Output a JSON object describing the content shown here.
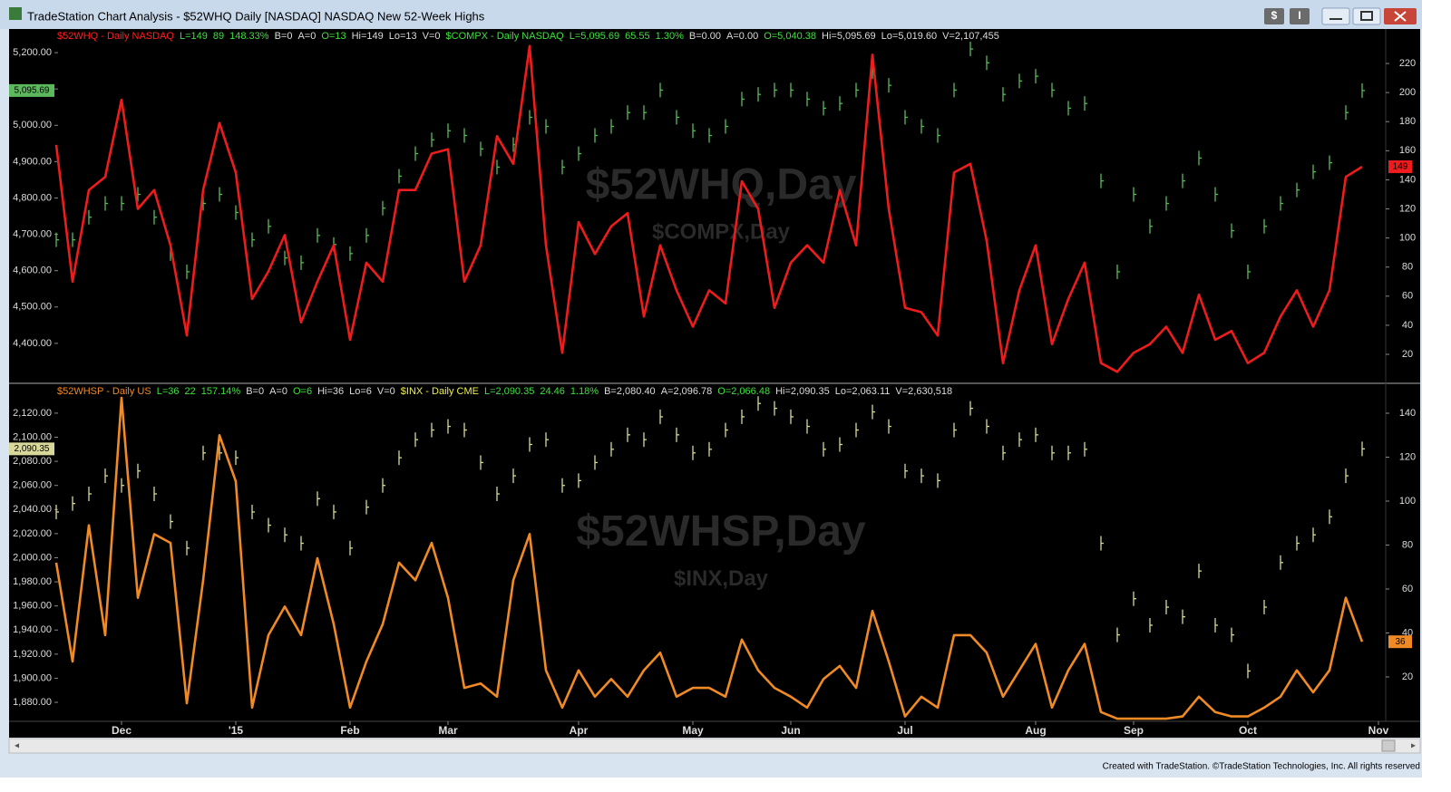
{
  "window": {
    "title": "TradeStation Chart Analysis - $52WHQ Daily [NASDAQ] NASDAQ New 52-Week Highs",
    "buttons": [
      "$",
      "I"
    ],
    "footer": "Created with TradeStation. ©TradeStation Technologies, Inc. All rights reserved"
  },
  "chart_data": [
    {
      "type": "line",
      "header": [
        {
          "text": "$52WHQ - Daily  NASDAQ",
          "color": "#ff2020"
        },
        {
          "text": "L=149",
          "color": "#3ee03e"
        },
        {
          "text": "89",
          "color": "#3ee03e"
        },
        {
          "text": "148.33%",
          "color": "#3ee03e"
        },
        {
          "text": "B=0",
          "color": "#dddddd"
        },
        {
          "text": "A=0",
          "color": "#dddddd"
        },
        {
          "text": "O=13",
          "color": "#3ee03e"
        },
        {
          "text": "Hi=149",
          "color": "#dddddd"
        },
        {
          "text": "Lo=13",
          "color": "#dddddd"
        },
        {
          "text": "V=0",
          "color": "#dddddd"
        },
        {
          "text": "$COMPX - Daily  NASDAQ",
          "color": "#3ee03e"
        },
        {
          "text": "L=5,095.69",
          "color": "#3ee03e"
        },
        {
          "text": "65.55",
          "color": "#3ee03e"
        },
        {
          "text": "1.30%",
          "color": "#3ee03e"
        },
        {
          "text": "B=0.00",
          "color": "#dddddd"
        },
        {
          "text": "A=0.00",
          "color": "#dddddd"
        },
        {
          "text": "O=5,040.38",
          "color": "#3ee03e"
        },
        {
          "text": "Hi=5,095.69",
          "color": "#dddddd"
        },
        {
          "text": "Lo=5,019.60",
          "color": "#dddddd"
        },
        {
          "text": "V=2,107,455",
          "color": "#dddddd"
        }
      ],
      "watermark": [
        "$52WHQ,Day",
        "$COMPX,Day"
      ],
      "ylim": [
        4292.5,
        5265
      ],
      "yticks": [
        {
          "value": 4400,
          "label": "4,400.00"
        },
        {
          "value": 4500,
          "label": "4,500.00"
        },
        {
          "value": 4600,
          "label": "4,600.00"
        },
        {
          "value": 4700,
          "label": "4,700.00"
        },
        {
          "value": 4800,
          "label": "4,800.00"
        },
        {
          "value": 4900,
          "label": "4,900.00"
        },
        {
          "value": 5000,
          "label": "5,000.00"
        },
        {
          "value": 5100,
          "label": "5,100.00"
        },
        {
          "value": 5200,
          "label": "5,200.00"
        }
      ],
      "y2lim": [
        0.7,
        243.7
      ],
      "y2ticks": [
        20,
        40,
        60,
        80,
        100,
        120,
        140,
        160,
        180,
        200,
        220
      ],
      "series": [
        {
          "style": "price-bar",
          "color": "#5cb85c",
          "last_label": "5,095.69",
          "values": [
            4685,
            4685,
            4747,
            4785,
            4785,
            4810,
            4747,
            4647,
            4597,
            4785,
            4810,
            4760,
            4685,
            4722,
            4635,
            4622,
            4697,
            4672,
            4647,
            4697,
            4772,
            4860,
            4922,
            4960,
            4985,
            4972,
            4935,
            4885,
            4947,
            5022,
            4997,
            4885,
            4922,
            4972,
            4997,
            5035,
            5035,
            5097,
            5022,
            4985,
            4972,
            4997,
            5072,
            5085,
            5097,
            5097,
            5072,
            5047,
            5060,
            5097,
            5147,
            5110,
            5022,
            4997,
            4972,
            5097,
            5210,
            5172,
            5085,
            5122,
            5135,
            5097,
            5047,
            5060,
            4847,
            4597,
            4810,
            4722,
            4785,
            4847,
            4910,
            4810,
            4710,
            4597,
            4722,
            4785,
            4822,
            4872,
            4897,
            5035,
            5095.69,
            null
          ]
        },
        {
          "style": "line",
          "axis": "y2",
          "color": "#ee1c1c",
          "last_label": "149",
          "values": [
            164,
            70,
            133,
            142,
            195,
            120,
            133,
            95,
            33,
            133,
            179,
            145,
            58,
            77,
            102,
            42,
            70,
            95,
            30,
            83,
            70,
            133,
            133,
            158,
            161,
            70,
            95,
            170,
            151,
            232,
            95,
            21,
            111,
            89,
            108,
            117,
            46,
            95,
            64,
            39,
            64,
            55,
            139,
            120,
            52,
            83,
            95,
            83,
            133,
            95,
            226,
            120,
            52,
            49,
            33,
            145,
            151,
            98,
            14,
            64,
            95,
            27,
            58,
            83,
            14,
            8,
            21,
            27,
            39,
            21,
            61,
            30,
            36,
            14,
            21,
            46,
            64,
            39,
            64,
            142,
            149,
            null
          ]
        }
      ]
    },
    {
      "type": "line",
      "header": [
        {
          "text": "$52WHSP - Daily  US",
          "color": "#f08a24"
        },
        {
          "text": "L=36",
          "color": "#3ee03e"
        },
        {
          "text": "22",
          "color": "#3ee03e"
        },
        {
          "text": "157.14%",
          "color": "#3ee03e"
        },
        {
          "text": "B=0",
          "color": "#dddddd"
        },
        {
          "text": "A=0",
          "color": "#dddddd"
        },
        {
          "text": "O=6",
          "color": "#3ee03e"
        },
        {
          "text": "Hi=36",
          "color": "#dddddd"
        },
        {
          "text": "Lo=6",
          "color": "#dddddd"
        },
        {
          "text": "V=0",
          "color": "#dddddd"
        },
        {
          "text": "$INX - Daily  CME",
          "color": "#f0f050"
        },
        {
          "text": "L=2,090.35",
          "color": "#3ee03e"
        },
        {
          "text": "24.46",
          "color": "#3ee03e"
        },
        {
          "text": "1.18%",
          "color": "#3ee03e"
        },
        {
          "text": "B=2,080.40",
          "color": "#dddddd"
        },
        {
          "text": "A=2,096.78",
          "color": "#dddddd"
        },
        {
          "text": "O=2,066.48",
          "color": "#3ee03e"
        },
        {
          "text": "Hi=2,090.35",
          "color": "#dddddd"
        },
        {
          "text": "Lo=2,063.11",
          "color": "#dddddd"
        },
        {
          "text": "V=2,630,518",
          "color": "#dddddd"
        }
      ],
      "watermark": [
        "$52WHSP,Day",
        "$INX,Day"
      ],
      "categories": [
        null,
        null,
        null,
        null,
        "Dec",
        null,
        null,
        null,
        null,
        null,
        null,
        "'15",
        null,
        null,
        null,
        null,
        null,
        null,
        "Feb",
        null,
        null,
        null,
        null,
        null,
        "Mar",
        null,
        null,
        null,
        null,
        null,
        null,
        null,
        "Apr",
        null,
        null,
        null,
        null,
        null,
        null,
        "May",
        null,
        null,
        null,
        null,
        null,
        "Jun",
        null,
        null,
        null,
        null,
        null,
        null,
        "Jul",
        null,
        null,
        null,
        null,
        null,
        null,
        null,
        "Aug",
        null,
        null,
        null,
        null,
        null,
        "Sep",
        null,
        null,
        null,
        null,
        null,
        null,
        "Oct",
        null,
        null,
        null,
        null,
        null,
        null,
        null,
        "Nov"
      ],
      "ylim": [
        1865,
        2144
      ],
      "yticks": [
        {
          "value": 1880,
          "label": "1,880.00"
        },
        {
          "value": 1900,
          "label": "1,900.00"
        },
        {
          "value": 1920,
          "label": "1,920.00"
        },
        {
          "value": 1940,
          "label": "1,940.00"
        },
        {
          "value": 1960,
          "label": "1,960.00"
        },
        {
          "value": 1980,
          "label": "1,980.00"
        },
        {
          "value": 2000,
          "label": "2,000.00"
        },
        {
          "value": 2020,
          "label": "2,020.00"
        },
        {
          "value": 2040,
          "label": "2,040.00"
        },
        {
          "value": 2060,
          "label": "2,060.00"
        },
        {
          "value": 2080,
          "label": "2,080.00"
        },
        {
          "value": 2100,
          "label": "2,100.00"
        },
        {
          "value": 2120,
          "label": "2,120.00"
        }
      ],
      "y2lim": [
        0.2,
        153.2
      ],
      "y2ticks": [
        20,
        40,
        60,
        80,
        100,
        120,
        140
      ],
      "series": [
        {
          "style": "price-bar",
          "color": "#d8d89a",
          "last_label": "2,090.35",
          "values": [
            2038,
            2045,
            2053,
            2068,
            2060,
            2072,
            2053,
            2030,
            2008,
            2087,
            2087,
            2083,
            2038,
            2027,
            2019,
            2012,
            2049,
            2038,
            2008,
            2042,
            2060,
            2083,
            2098,
            2106,
            2109,
            2106,
            2079,
            2053,
            2068,
            2094,
            2098,
            2060,
            2064,
            2079,
            2090,
            2102,
            2098,
            2117,
            2102,
            2087,
            2090,
            2106,
            2117,
            2128,
            2124,
            2117,
            2109,
            2090,
            2094,
            2106,
            2121,
            2109,
            2072,
            2068,
            2064,
            2106,
            2124,
            2109,
            2087,
            2098,
            2102,
            2087,
            2087,
            2090,
            2012,
            1936,
            1966,
            1944,
            1959,
            1951,
            1989,
            1944,
            1936,
            1906,
            1959,
            1996,
            2012,
            2019,
            2034,
            2068,
            2090.35,
            null
          ]
        },
        {
          "style": "line",
          "axis": "y2",
          "color": "#f08a24",
          "last_label": "36",
          "values": [
            72,
            27,
            89,
            39,
            147,
            56,
            85,
            81,
            8,
            64,
            130,
            109,
            6,
            39,
            52,
            39,
            74,
            44,
            6,
            27,
            44,
            72,
            64,
            81,
            56,
            15,
            17,
            11,
            64,
            85,
            23,
            6,
            23,
            11,
            19,
            11,
            23,
            31,
            11,
            15,
            15,
            11,
            37,
            23,
            15,
            11,
            6,
            19,
            25,
            15,
            50,
            27,
            2,
            11,
            6,
            39,
            39,
            31,
            11,
            23,
            35,
            6,
            23,
            35,
            4,
            1,
            1,
            1,
            1,
            2,
            11,
            4,
            2,
            2,
            6,
            11,
            23,
            13,
            23,
            56,
            36,
            null
          ]
        }
      ]
    }
  ]
}
